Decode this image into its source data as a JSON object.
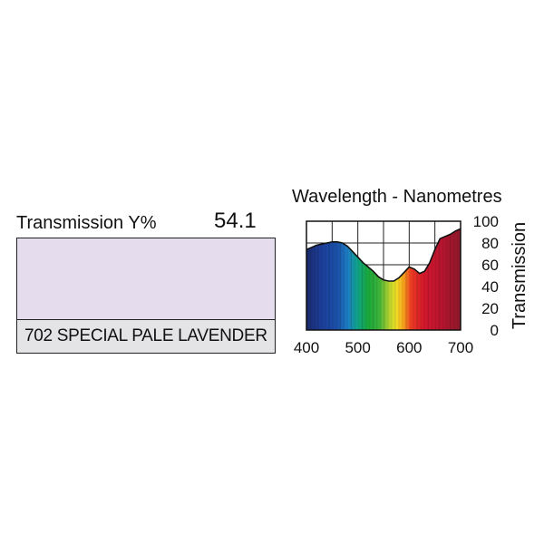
{
  "filter": {
    "transmission_label": "Transmission Y%",
    "transmission_value": "54.1",
    "name": "702 SPECIAL PALE LAVENDER",
    "swatch_color": "#e5dcee"
  },
  "chart_data": {
    "type": "area",
    "title": "Wavelength - Nanometres",
    "xlabel": "",
    "ylabel": "Transmission",
    "xlim": [
      400,
      700
    ],
    "ylim": [
      0,
      100
    ],
    "grid": true,
    "x_ticks": [
      "400",
      "500",
      "600",
      "700"
    ],
    "y_ticks": [
      "0",
      "20",
      "40",
      "60",
      "80",
      "100"
    ],
    "x": [
      400,
      410,
      420,
      430,
      440,
      450,
      460,
      470,
      480,
      490,
      500,
      510,
      520,
      530,
      540,
      550,
      560,
      570,
      580,
      590,
      600,
      610,
      620,
      630,
      640,
      650,
      660,
      670,
      680,
      690,
      700
    ],
    "values": [
      74,
      76,
      78,
      79,
      80,
      81,
      81,
      80,
      77,
      72,
      67,
      62,
      58,
      54,
      49,
      46,
      45,
      45,
      48,
      53,
      58,
      56,
      52,
      54,
      62,
      74,
      84,
      86,
      88,
      91,
      93
    ]
  }
}
